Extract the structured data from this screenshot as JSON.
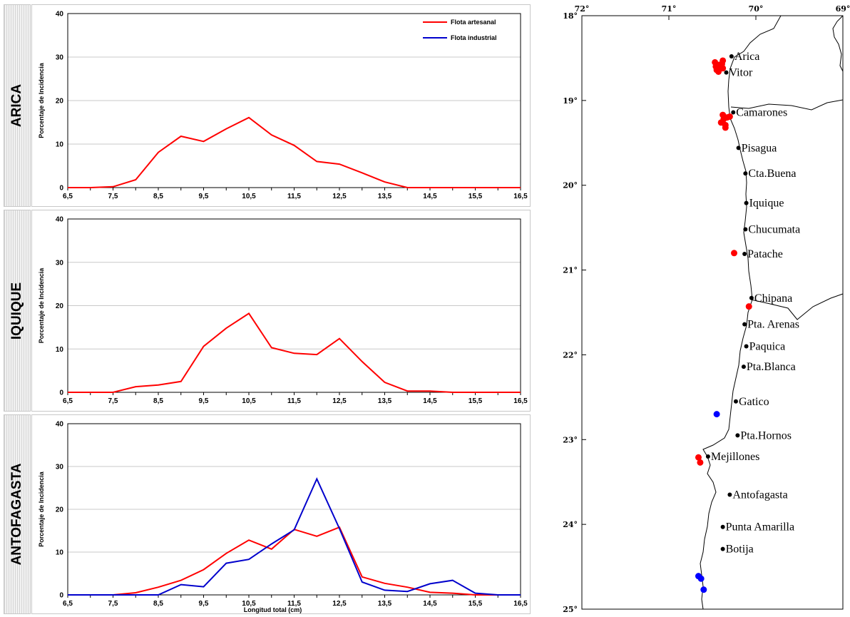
{
  "chart_data": [
    {
      "type": "line",
      "region": "ARICA",
      "ylabel": "Porcentaje de Incidencia",
      "xlabel": "",
      "xlim": [
        6.5,
        16.5
      ],
      "ylim": [
        0,
        40
      ],
      "xticks": [
        "6,5",
        "7,5",
        "8,5",
        "9,5",
        "10,5",
        "11,5",
        "12,5",
        "13,5",
        "14,5",
        "15,5",
        "16,5"
      ],
      "yticks": [
        "0",
        "10",
        "20",
        "30",
        "40"
      ],
      "grid": true,
      "legend": "top-right",
      "series": [
        {
          "name": "Flota artesanal",
          "color": "#ff0000",
          "x": [
            6.5,
            7,
            7.5,
            8,
            8.5,
            9,
            9.5,
            10,
            10.5,
            11,
            11.5,
            12,
            12.5,
            13,
            13.5,
            14,
            14.5,
            15,
            15.5,
            16,
            16.5
          ],
          "y": [
            0,
            0,
            0.2,
            1.8,
            8.1,
            11.8,
            10.6,
            13.5,
            16.1,
            12.1,
            9.7,
            6.0,
            5.4,
            3.4,
            1.3,
            0,
            0,
            0,
            0,
            0,
            0
          ]
        },
        {
          "name": "Flota industrial",
          "color": "#0000cc",
          "x": [],
          "y": []
        }
      ]
    },
    {
      "type": "line",
      "region": "IQUIQUE",
      "ylabel": "Porcentaje de Incidencia",
      "xlabel": "",
      "xlim": [
        6.5,
        16.5
      ],
      "ylim": [
        0,
        40
      ],
      "xticks": [
        "6,5",
        "7,5",
        "8,5",
        "9,5",
        "10,5",
        "11,5",
        "12,5",
        "13,5",
        "14,5",
        "15,5",
        "16,5"
      ],
      "yticks": [
        "0",
        "10",
        "20",
        "30",
        "40"
      ],
      "grid": true,
      "series": [
        {
          "name": "",
          "color": "#ff0000",
          "x": [
            6.5,
            7,
            7.5,
            8,
            8.5,
            9,
            9.5,
            10,
            10.5,
            11,
            11.5,
            12,
            12.5,
            13,
            13.5,
            14,
            14.5,
            15,
            15.5,
            16,
            16.5
          ],
          "y": [
            0,
            0,
            0,
            1.3,
            1.7,
            2.5,
            10.6,
            14.8,
            18.2,
            10.3,
            9.0,
            8.7,
            12.4,
            7.1,
            2.3,
            0.3,
            0.3,
            0,
            0,
            0,
            0
          ]
        }
      ]
    },
    {
      "type": "line",
      "region": "ANTOFAGASTA",
      "ylabel": "Porcentaje de Incidencia",
      "xlabel": "Longitud total (cm)",
      "xlim": [
        6.5,
        16.5
      ],
      "ylim": [
        0,
        40
      ],
      "xticks": [
        "6,5",
        "7,5",
        "8,5",
        "9,5",
        "10,5",
        "11,5",
        "12,5",
        "13,5",
        "14,5",
        "15,5",
        "16,5"
      ],
      "yticks": [
        "0",
        "10",
        "20",
        "30",
        "40"
      ],
      "grid": true,
      "series": [
        {
          "name": "",
          "color": "#ff0000",
          "x": [
            6.5,
            7,
            7.5,
            8,
            8.5,
            9,
            9.5,
            10,
            10.5,
            11,
            11.5,
            12,
            12.5,
            13,
            13.5,
            14,
            14.5,
            15,
            15.5,
            16,
            16.5
          ],
          "y": [
            0,
            0,
            0,
            0.5,
            1.8,
            3.4,
            5.9,
            9.7,
            12.8,
            10.7,
            15.3,
            13.7,
            15.8,
            4.2,
            2.7,
            1.8,
            0.6,
            0.4,
            0,
            0,
            0
          ]
        },
        {
          "name": "",
          "color": "#0000cc",
          "x": [
            6.5,
            7,
            7.5,
            8,
            8.5,
            9,
            9.5,
            10,
            10.5,
            11,
            11.5,
            12,
            12.5,
            13,
            13.5,
            14,
            14.5,
            15,
            15.5,
            16,
            16.5
          ],
          "y": [
            0,
            0,
            0,
            0,
            0,
            2.4,
            1.9,
            7.4,
            8.3,
            11.9,
            15.2,
            27.1,
            15.5,
            3.0,
            1.1,
            0.8,
            2.6,
            3.4,
            0.4,
            0,
            0
          ]
        }
      ]
    }
  ],
  "map": {
    "lon_ticks": [
      "72°",
      "71°",
      "70°",
      "69°"
    ],
    "lat_ticks": [
      "18°",
      "19°",
      "20°",
      "21°",
      "22°",
      "23°",
      "24°",
      "25°"
    ],
    "places": [
      {
        "name": "Arica",
        "lat": 18.48,
        "lon": 70.28
      },
      {
        "name": "Vitor",
        "lat": 18.67,
        "lon": 70.34
      },
      {
        "name": "Camarones",
        "lat": 19.14,
        "lon": 70.26
      },
      {
        "name": "Pisagua",
        "lat": 19.56,
        "lon": 70.2
      },
      {
        "name": "Cta.Buena",
        "lat": 19.86,
        "lon": 70.12
      },
      {
        "name": "Iquique",
        "lat": 20.21,
        "lon": 70.11
      },
      {
        "name": "Chucumata",
        "lat": 20.52,
        "lon": 70.12
      },
      {
        "name": "Patache",
        "lat": 20.81,
        "lon": 70.13
      },
      {
        "name": "Chipana",
        "lat": 21.33,
        "lon": 70.05
      },
      {
        "name": "Pta. Arenas",
        "lat": 21.64,
        "lon": 70.13
      },
      {
        "name": "Paquica",
        "lat": 21.9,
        "lon": 70.11
      },
      {
        "name": "Pta.Blanca",
        "lat": 22.14,
        "lon": 70.14
      },
      {
        "name": "Gatico",
        "lat": 22.55,
        "lon": 70.23
      },
      {
        "name": "Pta.Hornos",
        "lat": 22.95,
        "lon": 70.21
      },
      {
        "name": "Mejillones",
        "lat": 23.2,
        "lon": 70.55
      },
      {
        "name": "Antofagasta",
        "lat": 23.65,
        "lon": 70.3
      },
      {
        "name": "Punta Amarilla",
        "lat": 24.03,
        "lon": 70.38
      },
      {
        "name": "Botija",
        "lat": 24.29,
        "lon": 70.38
      }
    ],
    "red_points": [
      [
        18.55,
        70.47
      ],
      [
        18.58,
        70.42
      ],
      [
        18.6,
        70.46
      ],
      [
        18.62,
        70.4
      ],
      [
        18.64,
        70.45
      ],
      [
        18.66,
        70.43
      ],
      [
        18.57,
        70.39
      ],
      [
        18.53,
        70.38
      ],
      [
        18.62,
        70.38
      ],
      [
        19.17,
        70.38
      ],
      [
        19.2,
        70.33
      ],
      [
        19.22,
        70.37
      ],
      [
        19.26,
        70.4
      ],
      [
        19.29,
        70.35
      ],
      [
        19.32,
        70.35
      ],
      [
        19.19,
        70.3
      ],
      [
        20.8,
        70.25
      ],
      [
        21.43,
        70.08
      ],
      [
        23.21,
        70.66
      ],
      [
        23.27,
        70.64
      ]
    ],
    "blue_points": [
      [
        22.7,
        70.45
      ],
      [
        24.61,
        70.66
      ],
      [
        24.64,
        70.63
      ],
      [
        24.77,
        70.6
      ]
    ]
  }
}
